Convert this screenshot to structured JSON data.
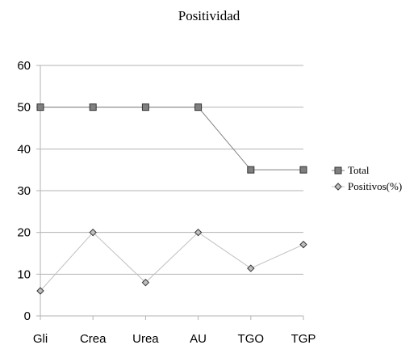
{
  "chart_data": {
    "type": "line",
    "title": "Positividad",
    "xlabel": "",
    "ylabel": "",
    "categories": [
      "Gli",
      "Crea",
      "Urea",
      "AU",
      "TGO",
      "TGP"
    ],
    "ylim": [
      0,
      60
    ],
    "yticks": [
      0,
      10,
      20,
      30,
      40,
      50,
      60
    ],
    "grid": true,
    "legend_position": "right",
    "series": [
      {
        "name": "Total",
        "values": [
          50,
          50,
          50,
          50,
          35,
          35
        ],
        "color": "#7f7f7f",
        "marker": "square"
      },
      {
        "name": "Positivos(%)",
        "values": [
          6,
          20,
          8,
          20,
          11.4,
          17.1
        ],
        "color": "#c0c0c0",
        "marker": "diamond"
      }
    ]
  }
}
